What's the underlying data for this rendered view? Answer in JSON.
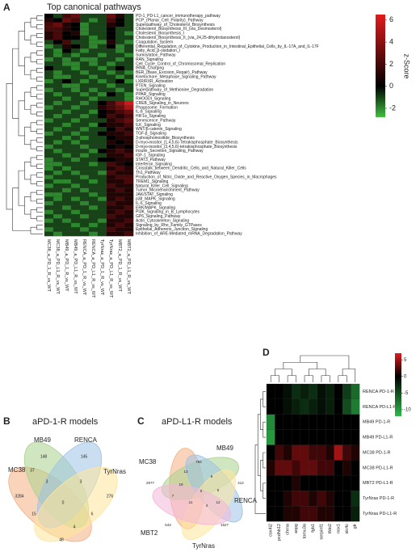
{
  "chart_data": [
    {
      "type": "heatmap",
      "panel_label": "A",
      "title": "Top canonical pathways",
      "colorbar_label": "z-Score",
      "rows": [
        "PD-1_PD-L1_cancer_immunotherapy_pathway",
        "PCP_(Planar_Cell_Polarity)_Pathway",
        "Superpathway_of_Cholesterol_Biosynthesis",
        "Cholesterol_Biosynthesis_III_(via_Desmosterol)",
        "Cholesterol_Biosynthesis_I",
        "Cholesterol_Biosynthesis_II_(via_24,25-dihydrolanosterol)",
        "Coagulation_System",
        "Differential_Regulation_of_Cytokine_Production_in_Intestinal_Epithelial_Cells_by_IL-17A_and_IL-17F",
        "Fatty_Acid_β-oxidation_I",
        "Sumoylation_Pathway",
        "RAN_Signaling",
        "Cell_Cycle_Control_of_Chromosomal_Replication",
        "tRNA_Charging",
        "BER_(Base_Excision_Repair)_Pathway",
        "Kinetochore_Metaphase_Signaling_Pathway",
        "LXR/RXR_Activation",
        "PTEN_Signaling",
        "Superpathway_of_Methionine_Degradation",
        "PPAR_Signaling",
        "RHOGDI_Signaling",
        "CREB_Signaling_in_Neurons",
        "Phagosome_Formation",
        "IL-8_Signaling",
        "HIF1α_Signaling",
        "Senescence_Pathway",
        "ILK_Signaling",
        "WNT/β-catenin_Signaling",
        "TGF-β_Signaling",
        "3-phosphoinositide_Biosynthesis",
        "D-myo-inositol_(1,4,5,6)-Tetrakisphosphate_Biosynthesis",
        "D-myo-inositol_(3,4,5,6)-tetrakisphosphate_Biosynthesis",
        "Insulin_Secretion_Signaling_Pathway",
        "IGF-1_Signaling",
        "STAT3_Pathway",
        "Interferon_Signaling",
        "Crosstalk_between_Dendritic_Cells_and_Natural_Killer_Cells",
        "Th1_Pathway",
        "Production_of_Nitric_Oxide_and_Reactive_Oxygen_Species_in_Macrophages",
        "TREM1_Signaling",
        "Natural_Killer_Cell_Signaling",
        "Tumor_Microenvironment_Pathway",
        "JAK/STAT_Signaling",
        "p38_MAPK_Signaling",
        "IL-6_Signaling",
        "ERK/MAPK_Signaling",
        "PI3K_Signaling_in_B_Lymphocytes",
        "GP6_Signaling_Pathway",
        "Actin_Cytoskeleton_Signaling",
        "Signaling_by_Rho_Family_GTPases",
        "Epithelial_Adherens_Junction_Signaling",
        "Inhibition_of_ARE-Mediated_mRNA_Degradation_Pathway"
      ],
      "columns": [
        "MC38_a_PD_1_R_vs_WT",
        "MC38_a_PD_L1_R_vs_WT",
        "MB49_a_PD_1_R_vs_WT",
        "MB49_a_PD_L1_R_vs_WT",
        "RENCA_a_PD_1_R_vs_WT",
        "RENCA_a_PD_L1_R_vs_WT",
        "TyrNras_a_PD_1_R_vs_WT",
        "TyrNras_a_PD_L1_R_vs_WT",
        "MBT2_a_PD_1_R_vs_WT",
        "MBT2_a_PD_L1_R_vs_WT"
      ],
      "values": [
        [
          0,
          -1,
          2,
          3,
          -1,
          -1,
          -1,
          3,
          1,
          -1
        ],
        [
          1,
          0,
          3,
          2,
          -1,
          -2,
          -1,
          2,
          0,
          -1
        ],
        [
          2,
          3,
          1,
          0,
          -2,
          -1,
          -1,
          1,
          0,
          -1
        ],
        [
          2,
          2,
          1,
          0,
          -2,
          -1,
          -1,
          0,
          -1,
          -1
        ],
        [
          1,
          2,
          0,
          1,
          -2,
          -1,
          -1,
          0,
          -1,
          -2
        ],
        [
          1,
          2,
          0,
          0,
          -1,
          -2,
          -1,
          0,
          -1,
          -1
        ],
        [
          -1,
          0,
          2,
          -1,
          -1,
          -2,
          -2,
          1,
          -1,
          -2
        ],
        [
          -2,
          -1,
          1,
          0,
          -1,
          -2,
          -1,
          0,
          -2,
          -1
        ],
        [
          -1,
          -2,
          0,
          -1,
          -2,
          -1,
          -1,
          -1,
          -2,
          -1
        ],
        [
          -1,
          -2,
          -1,
          -2,
          -1,
          -1,
          -2,
          -1,
          -1,
          -2
        ],
        [
          -2,
          -1,
          -2,
          -1,
          -2,
          -2,
          -1,
          -1,
          -2,
          -1
        ],
        [
          -1,
          -1,
          -2,
          -2,
          -1,
          -2,
          -1,
          -2,
          -1,
          -1
        ],
        [
          0,
          -1,
          -1,
          -2,
          -1,
          -1,
          -2,
          -1,
          0,
          -1
        ],
        [
          -1,
          -2,
          -1,
          -1,
          -2,
          -1,
          -1,
          -2,
          -1,
          -2
        ],
        [
          -1,
          -2,
          -2,
          -1,
          -1,
          -2,
          -1,
          -1,
          -2,
          -1
        ],
        [
          -2,
          -1,
          0,
          -1,
          -2,
          -1,
          -2,
          -1,
          0,
          -2
        ],
        [
          -1,
          -1,
          -2,
          -2,
          -1,
          -1,
          -1,
          -2,
          -1,
          -1
        ],
        [
          -2,
          -1,
          -1,
          -2,
          -1,
          -2,
          -1,
          -1,
          -2,
          -1
        ],
        [
          -1,
          -2,
          -1,
          -1,
          -2,
          -1,
          -2,
          0,
          -1,
          -2
        ],
        [
          -1,
          -1,
          -2,
          -1,
          -1,
          -2,
          -1,
          -1,
          -1,
          -2
        ],
        [
          -1,
          -2,
          -1,
          -1,
          -2,
          -1,
          0,
          2,
          4,
          6
        ],
        [
          -2,
          -1,
          -1,
          -2,
          -1,
          -1,
          1,
          2,
          3,
          5
        ],
        [
          -1,
          -1,
          -2,
          -1,
          -1,
          -2,
          0,
          1,
          2,
          3
        ],
        [
          -1,
          -2,
          -1,
          -1,
          -2,
          -1,
          0,
          2,
          1,
          2
        ],
        [
          -2,
          -1,
          -1,
          -2,
          -1,
          -1,
          -1,
          1,
          2,
          3
        ],
        [
          -1,
          -1,
          -2,
          -1,
          -1,
          -2,
          0,
          1,
          1,
          2
        ],
        [
          -1,
          -2,
          -1,
          -1,
          -2,
          -1,
          -1,
          0,
          2,
          1
        ],
        [
          -2,
          -1,
          -1,
          -2,
          -1,
          -1,
          0,
          1,
          1,
          2
        ],
        [
          -1,
          -1,
          -2,
          -1,
          -2,
          -1,
          -1,
          0,
          1,
          1
        ],
        [
          -1,
          -2,
          -1,
          -2,
          -1,
          -1,
          -1,
          1,
          0,
          1
        ],
        [
          -2,
          -1,
          -1,
          -1,
          -2,
          -1,
          -1,
          0,
          1,
          0
        ],
        [
          -1,
          -2,
          -1,
          -1,
          -1,
          -2,
          0,
          1,
          2,
          1
        ],
        [
          -1,
          -1,
          -2,
          -1,
          -2,
          -1,
          -1,
          1,
          1,
          2
        ],
        [
          -2,
          -1,
          -1,
          -2,
          -1,
          -1,
          0,
          0,
          1,
          1
        ],
        [
          -2,
          -2,
          -1,
          -1,
          -1,
          -2,
          -1,
          2,
          1,
          0
        ],
        [
          -2,
          -1,
          -2,
          -1,
          -1,
          -1,
          -1,
          1,
          2,
          1
        ],
        [
          -1,
          -2,
          -1,
          -2,
          -1,
          -1,
          -2,
          2,
          1,
          1
        ],
        [
          -2,
          -1,
          -1,
          -1,
          -2,
          -1,
          -1,
          1,
          2,
          2
        ],
        [
          -1,
          -2,
          -2,
          -1,
          -1,
          -2,
          -1,
          1,
          1,
          2
        ],
        [
          -2,
          -1,
          -1,
          -2,
          -1,
          -1,
          -1,
          2,
          1,
          1
        ],
        [
          -1,
          -1,
          -2,
          -1,
          -2,
          -1,
          -1,
          1,
          2,
          1
        ],
        [
          -2,
          -2,
          -1,
          -1,
          -1,
          -2,
          -1,
          1,
          1,
          1
        ],
        [
          -1,
          -2,
          -1,
          -2,
          -1,
          -1,
          -2,
          1,
          2,
          1
        ],
        [
          -2,
          -1,
          -1,
          -1,
          -2,
          -1,
          -1,
          2,
          1,
          1
        ],
        [
          -1,
          -1,
          -2,
          -1,
          -1,
          -2,
          -1,
          1,
          1,
          2
        ],
        [
          -2,
          -1,
          -1,
          -2,
          -1,
          -1,
          -1,
          1,
          2,
          1
        ],
        [
          -1,
          -2,
          -1,
          -1,
          -2,
          -1,
          -1,
          2,
          1,
          1
        ],
        [
          -2,
          -1,
          -2,
          -1,
          -1,
          -1,
          -2,
          1,
          1,
          2
        ],
        [
          -1,
          -1,
          -1,
          -2,
          -1,
          -2,
          -1,
          1,
          2,
          1
        ],
        [
          -2,
          -1,
          -1,
          -1,
          -2,
          -1,
          -1,
          2,
          1,
          1
        ],
        [
          -1,
          -2,
          -1,
          -1,
          -1,
          -2,
          -1,
          1,
          1,
          2
        ]
      ],
      "clim": [
        -2.8,
        6.5
      ],
      "cticks": [
        6,
        4,
        2,
        0,
        -2
      ],
      "cmap": [
        "#3fbf3f",
        "#000000",
        "#e31a1c"
      ]
    },
    {
      "type": "venn",
      "panel_label": "B",
      "title": "aPD-1-R models",
      "sets": [
        {
          "name": "MC38",
          "color": "#f4b183"
        },
        {
          "name": "MB49",
          "color": "#a9d18e"
        },
        {
          "name": "RENCA",
          "color": "#9dc3e6"
        },
        {
          "name": "TyrNras",
          "color": "#ffe699"
        }
      ],
      "counts": [
        3284,
        37,
        148,
        145,
        276,
        3,
        3,
        15,
        0,
        6,
        4,
        48
      ]
    },
    {
      "type": "venn",
      "panel_label": "C",
      "title": "aPD-L1-R models",
      "sets": [
        {
          "name": "MC38",
          "color": "#f4b183"
        },
        {
          "name": "MB49",
          "color": "#a9d18e"
        },
        {
          "name": "RENCA",
          "color": "#9dc3e6"
        },
        {
          "name": "TyrNras",
          "color": "#ffe699"
        },
        {
          "name": "MBT2",
          "color": "#f4b6d8"
        }
      ],
      "counts": [
        2977,
        794,
        412,
        1527,
        543,
        13,
        19,
        8,
        5,
        0,
        11,
        4,
        7,
        12
      ]
    },
    {
      "type": "heatmap",
      "panel_label": "D",
      "rows": [
        "RENCA PD-1-R",
        "RENCA PD-L1-R",
        "MB49 PD-1-R",
        "MB49 PD-L1-R",
        "MC38 PD-1-R",
        "MC38 PD-L1-R",
        "MBT2 PD-L1-R",
        "TyrNras PD-1-R",
        "TyrNras PD-L1-R"
      ],
      "columns": [
        "cox4i2",
        "pcdhb12",
        "chrna",
        "aspg",
        "tomu3a",
        "fgb1",
        "serpinf1",
        "tfdo2",
        "nox1",
        "slc4c",
        "gfr"
      ],
      "values": [
        [
          0,
          0,
          -1,
          -3,
          -2,
          -3,
          -1,
          -2,
          0,
          -4,
          -7
        ],
        [
          0,
          0,
          -1,
          -2,
          -3,
          -2,
          -1,
          -2,
          0,
          -5,
          -8
        ],
        [
          -9,
          0,
          0,
          0,
          0,
          0,
          0,
          0,
          0,
          0,
          0
        ],
        [
          -10,
          0,
          0,
          0,
          0,
          0,
          0,
          0,
          0,
          0,
          0
        ],
        [
          0,
          2,
          1,
          3,
          3,
          2,
          2,
          1,
          5,
          2,
          1
        ],
        [
          1,
          3,
          3,
          2,
          3,
          3,
          2,
          2,
          0,
          1,
          0
        ],
        [
          0,
          0,
          0,
          1,
          0,
          0,
          0,
          0,
          0,
          0,
          0
        ],
        [
          0,
          0,
          1,
          2,
          2,
          1,
          2,
          1,
          0,
          0,
          -3
        ],
        [
          0,
          0,
          1,
          1,
          2,
          2,
          1,
          1,
          0,
          0,
          -2
        ]
      ],
      "clim": [
        -12,
        7
      ],
      "cticks": [
        5,
        0,
        -5,
        -10
      ],
      "cmap": [
        "#2db84a",
        "#000000",
        "#e31a1c"
      ]
    }
  ]
}
